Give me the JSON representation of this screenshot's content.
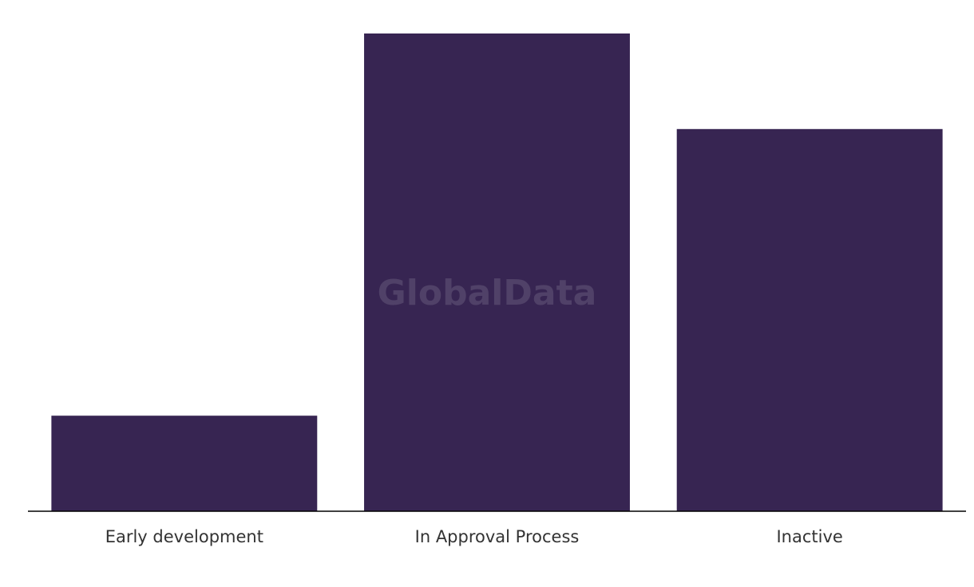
{
  "chart_data": {
    "type": "bar",
    "watermark": "GlobalData",
    "categories": [
      "Early development",
      "In Approval Process",
      "Inactive"
    ],
    "values": [
      1,
      5,
      4
    ],
    "color": "#372552"
  }
}
